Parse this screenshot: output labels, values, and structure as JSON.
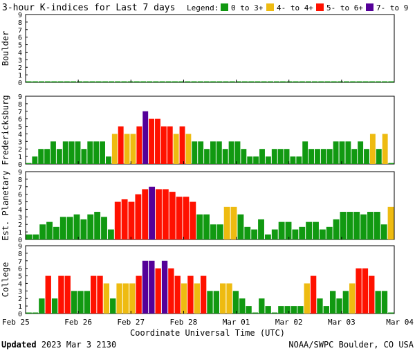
{
  "title": "3-hour K-indices for Last 7 days",
  "legend": {
    "label": "Legend:",
    "items": [
      {
        "text": "0 to 3+",
        "color": "#119911"
      },
      {
        "text": "4- to 4+",
        "color": "#eebb11"
      },
      {
        "text": "5- to 6+",
        "color": "#ff1100"
      },
      {
        "text": "7- to 9",
        "color": "#550099"
      }
    ]
  },
  "footer": {
    "updated_label": "Updated",
    "updated_value": "2023 Mar  3 2130",
    "credit": "NOAA/SWPC Boulder, CO USA"
  },
  "chart_data": {
    "type": "bar",
    "xlabel": "Coordinate Universal Time (UTC)",
    "x_ticks": [
      "Feb 25",
      "Feb 26",
      "Feb 27",
      "Feb 28",
      "Mar 01",
      "Mar 02",
      "Mar 03",
      "Mar 04"
    ],
    "interval_hours": 3,
    "ylim": [
      0,
      9
    ],
    "y_ticks": [
      "0",
      "1",
      "2",
      "3",
      "4",
      "5",
      "6",
      "7",
      "8",
      "9"
    ],
    "color_thresholds": "0-3.99 green, 4-4.99 yellow, 5-6.99 red, 7-9 purple",
    "panels": [
      {
        "name": "Boulder",
        "values": [
          0,
          0,
          0,
          0,
          0,
          0,
          0,
          0,
          0,
          0,
          0,
          0,
          0,
          0,
          0,
          0,
          0,
          0,
          0,
          0,
          0,
          0,
          0,
          0,
          0,
          0,
          0,
          0,
          0,
          0,
          0,
          0,
          0,
          0,
          0,
          0,
          0,
          0,
          0,
          0,
          0,
          0,
          0,
          0,
          0,
          0,
          0,
          0,
          0,
          0,
          0,
          0,
          0,
          0,
          0,
          0,
          0,
          0
        ]
      },
      {
        "name": "Fredericksburg",
        "values": [
          0,
          1,
          2,
          2,
          3,
          2,
          3,
          3,
          3,
          2,
          3,
          3,
          3,
          1,
          4,
          5,
          4,
          4,
          5,
          7,
          6,
          6,
          5,
          5,
          4,
          5,
          4,
          3,
          3,
          2,
          3,
          3,
          2,
          3,
          3,
          2,
          1,
          1,
          2,
          1,
          2,
          2,
          2,
          1,
          1,
          3,
          2,
          2,
          2,
          2,
          3,
          3,
          3,
          2,
          3,
          2,
          4,
          2,
          4,
          0
        ]
      },
      {
        "name": "Est. Planetary",
        "values": [
          0.67,
          0.67,
          2,
          2.33,
          1.67,
          3,
          3,
          3.33,
          2.67,
          3.33,
          3.67,
          3,
          1.33,
          5,
          5.33,
          5,
          6,
          6.67,
          7,
          6.67,
          6.67,
          6.33,
          5.67,
          5.67,
          5,
          3.33,
          3.33,
          2,
          2,
          4.33,
          4.33,
          3.33,
          1.67,
          1.33,
          2.67,
          0.67,
          1.33,
          2.33,
          2.33,
          1.33,
          1.67,
          2.33,
          2.33,
          1.33,
          1.67,
          2.67,
          3.67,
          3.67,
          3.67,
          3.33,
          3.67,
          3.67,
          2,
          4.33
        ]
      },
      {
        "name": "College",
        "values": [
          0,
          0,
          2,
          5,
          2,
          5,
          5,
          3,
          3,
          3,
          5,
          5,
          4,
          2,
          4,
          4,
          4,
          5,
          7,
          7,
          6,
          7,
          6,
          5,
          4,
          5,
          4,
          5,
          3,
          3,
          4,
          4,
          3,
          2,
          1,
          0,
          2,
          1,
          0,
          1,
          1,
          1,
          1,
          4,
          5,
          2,
          1,
          3,
          2,
          3,
          4,
          6,
          6,
          5,
          3,
          3,
          0
        ]
      }
    ]
  }
}
